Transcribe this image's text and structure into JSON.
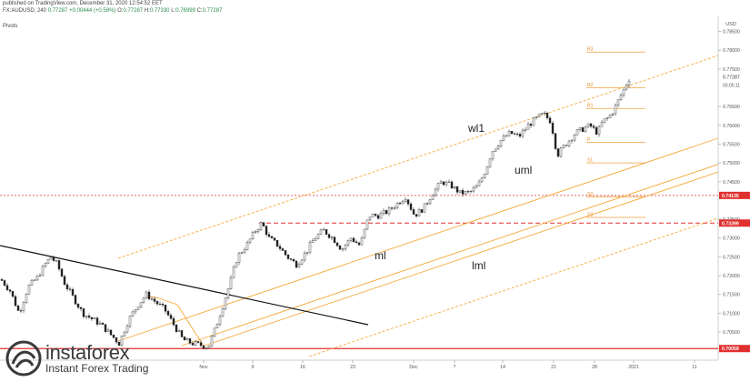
{
  "header": {
    "published": "published on TradingView.com, December 31, 2020 12:54:52 EET",
    "symbol_line": "FX:AUDUSD, 240",
    "o": "0.77287",
    "change": "+0.00444 (+0.58%)",
    "ohlc_prefix": "O:",
    "h": "0.77330",
    "l": "0.76999",
    "c": "0.77287",
    "indicator": "Pivots"
  },
  "chart_data": {
    "type": "candlestick",
    "currency": "USD",
    "ylim": [
      0.6975,
      0.789
    ],
    "y_ticks": [
      "0.78500",
      "0.78000",
      "0.77500",
      "0.76500",
      "0.76000",
      "0.75500",
      "0.75000",
      "0.74500",
      "0.73500",
      "0.73000",
      "0.72500",
      "0.72000",
      "0.71500",
      "0.71000",
      "0.70500"
    ],
    "x_ticks": [
      "Nov",
      "9",
      "16",
      "23",
      "Dec",
      "7",
      "14",
      "21",
      "28",
      "2021",
      "11"
    ],
    "current_price": "0.77287",
    "countdown": "03:05:11",
    "price_tags": [
      {
        "label": "0.74135",
        "color": "#e03030"
      },
      {
        "label": "0.73399",
        "color": "#e03030"
      },
      {
        "label": "0.70059",
        "color": "#e03030"
      }
    ],
    "pivots": [
      {
        "name": "R3",
        "value": 0.7795
      },
      {
        "name": "R2",
        "value": 0.77
      },
      {
        "name": "R1",
        "value": 0.7645
      },
      {
        "name": "P",
        "value": 0.7555
      },
      {
        "name": "S1",
        "value": 0.75
      },
      {
        "name": "S2",
        "value": 0.741
      },
      {
        "name": "S3",
        "value": 0.7355
      }
    ],
    "pitchfork_labels": [
      "wl1",
      "uml",
      "ml",
      "lml"
    ],
    "close_path": [
      [
        0,
        0.719
      ],
      [
        10,
        0.716
      ],
      [
        20,
        0.71
      ],
      [
        30,
        0.717
      ],
      [
        40,
        0.7195
      ],
      [
        50,
        0.7235
      ],
      [
        55,
        0.725
      ],
      [
        62,
        0.723
      ],
      [
        70,
        0.718
      ],
      [
        80,
        0.714
      ],
      [
        90,
        0.71
      ],
      [
        100,
        0.7085
      ],
      [
        110,
        0.707
      ],
      [
        120,
        0.7045
      ],
      [
        130,
        0.702
      ],
      [
        140,
        0.708
      ],
      [
        150,
        0.712
      ],
      [
        160,
        0.715
      ],
      [
        170,
        0.713
      ],
      [
        180,
        0.711
      ],
      [
        190,
        0.707
      ],
      [
        200,
        0.703
      ],
      [
        210,
        0.702
      ],
      [
        220,
        0.7015
      ],
      [
        228,
        0.701
      ],
      [
        236,
        0.706
      ],
      [
        244,
        0.712
      ],
      [
        252,
        0.718
      ],
      [
        260,
        0.725
      ],
      [
        270,
        0.728
      ],
      [
        280,
        0.732
      ],
      [
        287,
        0.734
      ],
      [
        295,
        0.73
      ],
      [
        305,
        0.728
      ],
      [
        315,
        0.725
      ],
      [
        325,
        0.723
      ],
      [
        335,
        0.726
      ],
      [
        345,
        0.73
      ],
      [
        355,
        0.732
      ],
      [
        365,
        0.73
      ],
      [
        375,
        0.727
      ],
      [
        385,
        0.73
      ],
      [
        395,
        0.728
      ],
      [
        405,
        0.736
      ],
      [
        415,
        0.736
      ],
      [
        425,
        0.737
      ],
      [
        435,
        0.739
      ],
      [
        445,
        0.741
      ],
      [
        455,
        0.736
      ],
      [
        465,
        0.738
      ],
      [
        475,
        0.742
      ],
      [
        485,
        0.745
      ],
      [
        495,
        0.744
      ],
      [
        505,
        0.742
      ],
      [
        515,
        0.742
      ],
      [
        525,
        0.744
      ],
      [
        533,
        0.748
      ],
      [
        540,
        0.753
      ],
      [
        550,
        0.756
      ],
      [
        560,
        0.758
      ],
      [
        570,
        0.757
      ],
      [
        580,
        0.76
      ],
      [
        590,
        0.762
      ],
      [
        597,
        0.763
      ],
      [
        605,
        0.761
      ],
      [
        612,
        0.752
      ],
      [
        618,
        0.754
      ],
      [
        625,
        0.756
      ],
      [
        632,
        0.758
      ],
      [
        640,
        0.759
      ],
      [
        648,
        0.76
      ],
      [
        656,
        0.758
      ],
      [
        662,
        0.761
      ],
      [
        668,
        0.762
      ],
      [
        674,
        0.764
      ],
      [
        680,
        0.767
      ],
      [
        686,
        0.77
      ],
      [
        692,
        0.7729
      ]
    ]
  }
}
